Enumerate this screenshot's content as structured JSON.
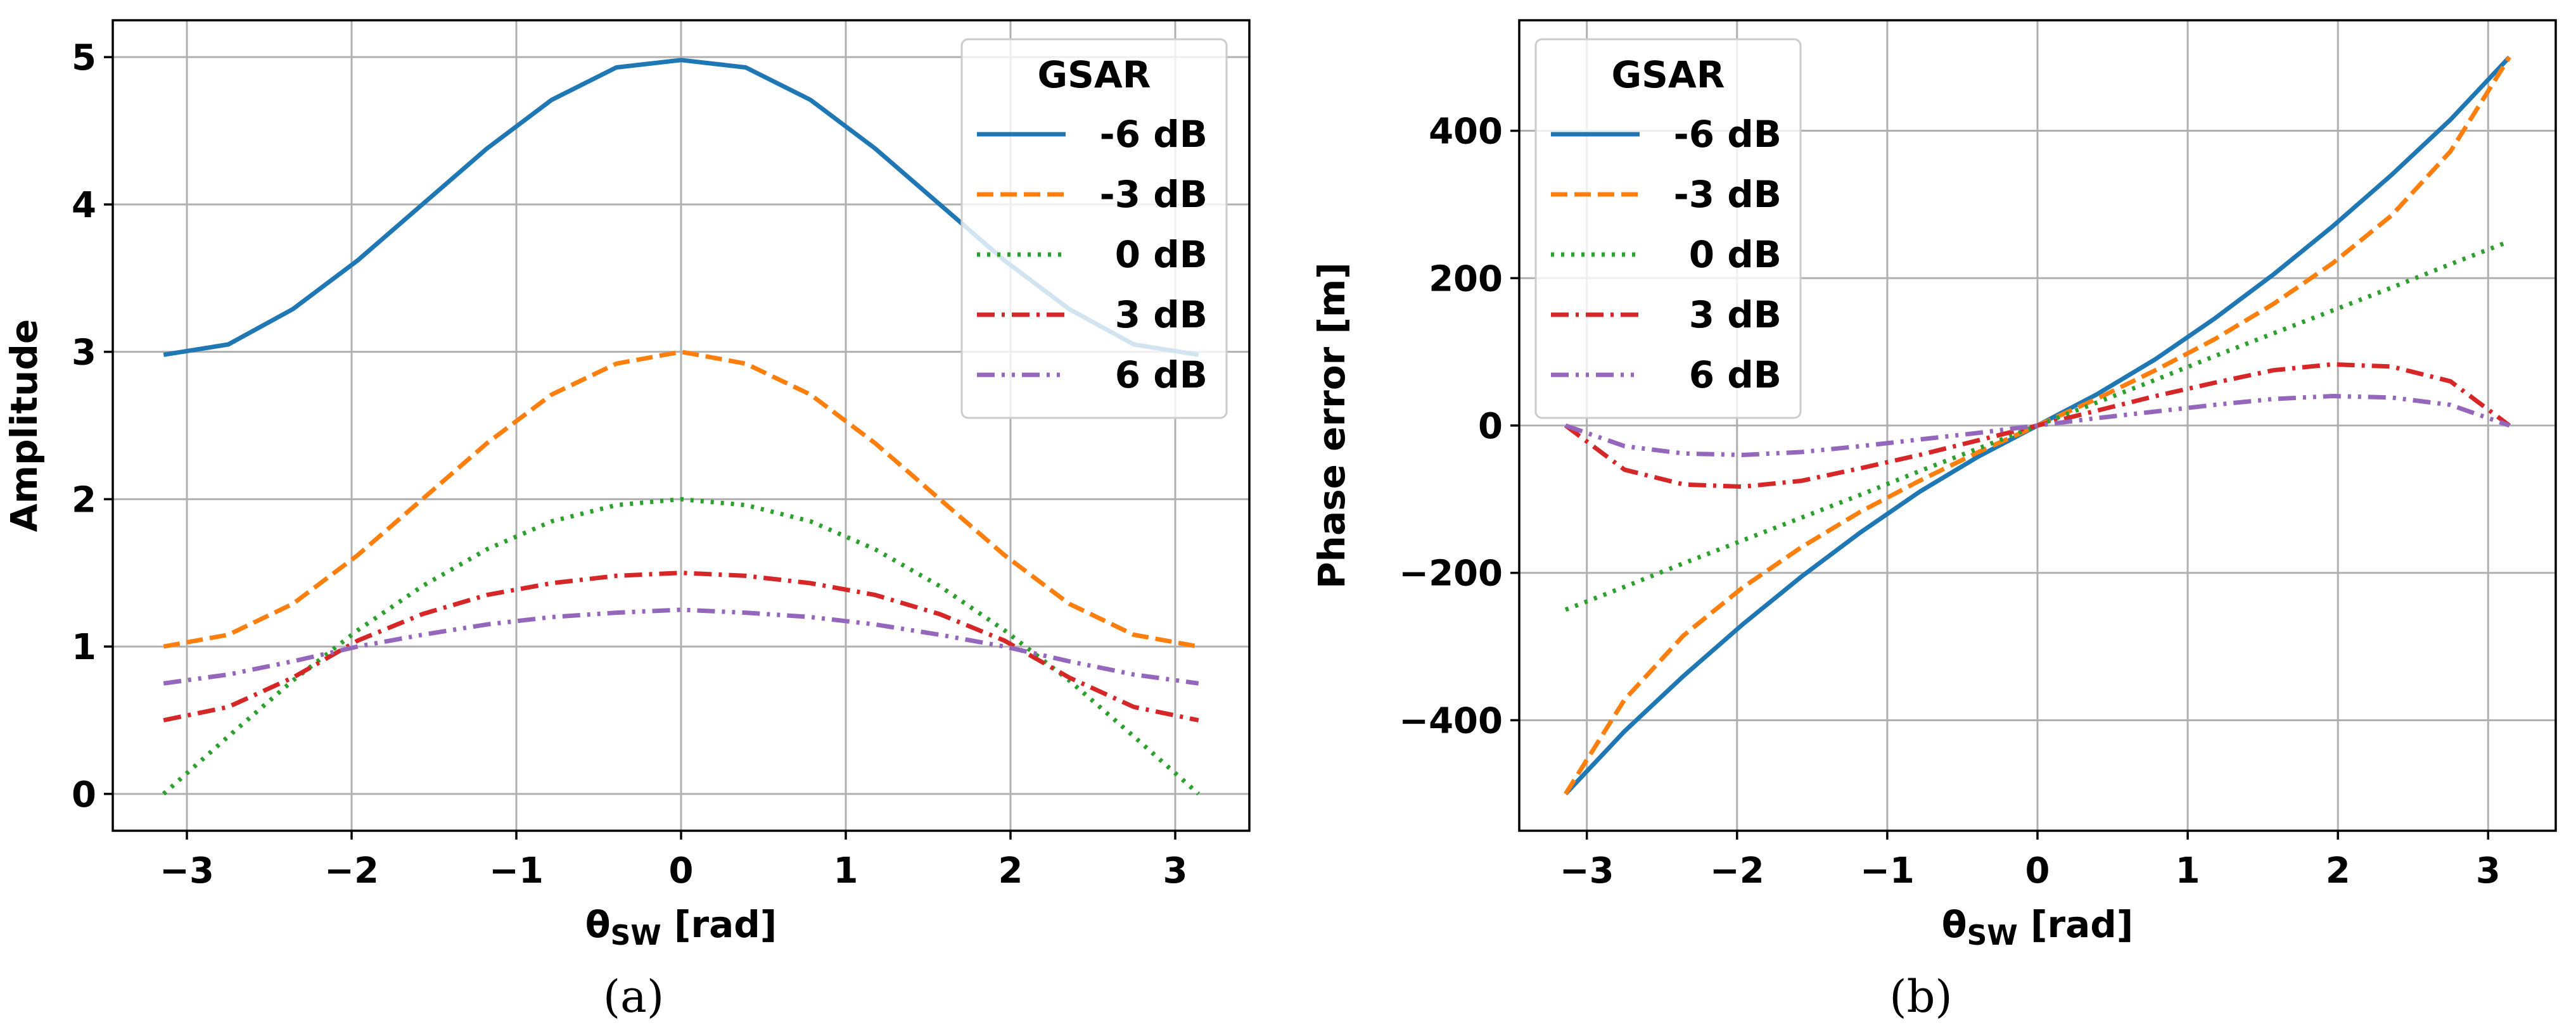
{
  "chart_data": [
    {
      "type": "line",
      "panel": "a",
      "caption": "(a)",
      "xlabel": "θSW [rad]",
      "xlabel_main": "θ",
      "xlabel_sub": "SW",
      "xlabel_unit": " [rad]",
      "ylabel": "Amplitude",
      "xlim": [
        -3.45,
        3.45
      ],
      "ylim": [
        -0.25,
        5.25
      ],
      "xticks": [
        -3,
        -2,
        -1,
        0,
        1,
        2,
        3
      ],
      "xtick_labels": [
        "−3",
        "−2",
        "−1",
        "0",
        "1",
        "2",
        "3"
      ],
      "yticks": [
        0,
        1,
        2,
        3,
        4,
        5
      ],
      "ytick_labels": [
        "0",
        "1",
        "2",
        "3",
        "4",
        "5"
      ],
      "grid": true,
      "legend": {
        "title": "GSAR",
        "placement": "top-right"
      },
      "x": [
        -3.1416,
        -2.7489,
        -2.3562,
        -1.9635,
        -1.5708,
        -1.1781,
        -0.7854,
        -0.3927,
        0,
        0.3927,
        0.7854,
        1.1781,
        1.5708,
        1.9635,
        2.3562,
        2.7489,
        3.1416
      ],
      "series": [
        {
          "name": "-6 dB",
          "color": "#1f77b4",
          "dash": "solid",
          "values": [
            2.98,
            3.05,
            3.29,
            3.62,
            4.0,
            4.38,
            4.71,
            4.93,
            4.98,
            4.93,
            4.71,
            4.38,
            4.0,
            3.62,
            3.29,
            3.05,
            2.98
          ]
        },
        {
          "name": "-3 dB",
          "color": "#ff7f0e",
          "dash": "dashed",
          "values": [
            1.0,
            1.08,
            1.29,
            1.62,
            2.0,
            2.38,
            2.71,
            2.92,
            3.0,
            2.92,
            2.71,
            2.38,
            2.0,
            1.62,
            1.29,
            1.08,
            1.0
          ]
        },
        {
          "name": "0 dB",
          "color": "#2ca02c",
          "dash": "dotted",
          "values": [
            0.0,
            0.39,
            0.77,
            1.11,
            1.41,
            1.66,
            1.85,
            1.96,
            2.0,
            1.96,
            1.85,
            1.66,
            1.41,
            1.11,
            0.77,
            0.39,
            0.0
          ]
        },
        {
          "name": "3 dB",
          "color": "#d62728",
          "dash": "dashdot",
          "values": [
            0.5,
            0.59,
            0.79,
            1.04,
            1.22,
            1.35,
            1.43,
            1.48,
            1.5,
            1.48,
            1.43,
            1.35,
            1.22,
            1.04,
            0.79,
            0.59,
            0.5
          ]
        },
        {
          "name": "6 dB",
          "color": "#9467bd",
          "dash": "dashdotdot",
          "values": [
            0.75,
            0.81,
            0.9,
            1.0,
            1.08,
            1.15,
            1.2,
            1.23,
            1.25,
            1.23,
            1.2,
            1.15,
            1.08,
            1.0,
            0.9,
            0.81,
            0.75
          ]
        }
      ]
    },
    {
      "type": "line",
      "panel": "b",
      "caption": "(b)",
      "xlabel": "θSW [rad]",
      "xlabel_main": "θ",
      "xlabel_sub": "SW",
      "xlabel_unit": " [rad]",
      "ylabel": "Phase error [m]",
      "xlim": [
        -3.45,
        3.45
      ],
      "ylim": [
        -550,
        550
      ],
      "xticks": [
        -3,
        -2,
        -1,
        0,
        1,
        2,
        3
      ],
      "xtick_labels": [
        "−3",
        "−2",
        "−1",
        "0",
        "1",
        "2",
        "3"
      ],
      "yticks": [
        -400,
        -200,
        0,
        200,
        400
      ],
      "ytick_labels": [
        "−400",
        "−200",
        "0",
        "200",
        "400"
      ],
      "grid": true,
      "legend": {
        "title": "GSAR",
        "placement": "top-left"
      },
      "x": [
        -3.1416,
        -2.7489,
        -2.3562,
        -1.9635,
        -1.5708,
        -1.1781,
        -0.7854,
        -0.3927,
        0,
        0.3927,
        0.7854,
        1.1781,
        1.5708,
        1.9635,
        2.3562,
        2.7489,
        3.1416
      ],
      "series": [
        {
          "name": "-6 dB",
          "color": "#1f77b4",
          "dash": "solid",
          "values": [
            -500,
            -415,
            -340,
            -270,
            -205,
            -145,
            -90,
            -42,
            0,
            42,
            90,
            145,
            205,
            270,
            340,
            415,
            500
          ]
        },
        {
          "name": "-3 dB",
          "color": "#ff7f0e",
          "dash": "dashed",
          "values": [
            -500,
            -372,
            -285,
            -220,
            -165,
            -117,
            -75,
            -36,
            0,
            36,
            75,
            117,
            165,
            220,
            285,
            372,
            500
          ]
        },
        {
          "name": "0 dB",
          "color": "#2ca02c",
          "dash": "dotted",
          "values": [
            -250,
            -219,
            -187,
            -156,
            -125,
            -94,
            -62,
            -31,
            0,
            31,
            62,
            94,
            125,
            156,
            187,
            219,
            250
          ]
        },
        {
          "name": "3 dB",
          "color": "#d62728",
          "dash": "dashdot",
          "values": [
            0,
            -60,
            -80,
            -83,
            -75,
            -58,
            -40,
            -20,
            0,
            20,
            40,
            58,
            75,
            83,
            80,
            60,
            0
          ]
        },
        {
          "name": "6 dB",
          "color": "#9467bd",
          "dash": "dashdotdot",
          "values": [
            0,
            -28,
            -38,
            -40,
            -36,
            -28,
            -19,
            -10,
            0,
            10,
            19,
            28,
            36,
            40,
            38,
            28,
            0
          ]
        }
      ]
    }
  ]
}
